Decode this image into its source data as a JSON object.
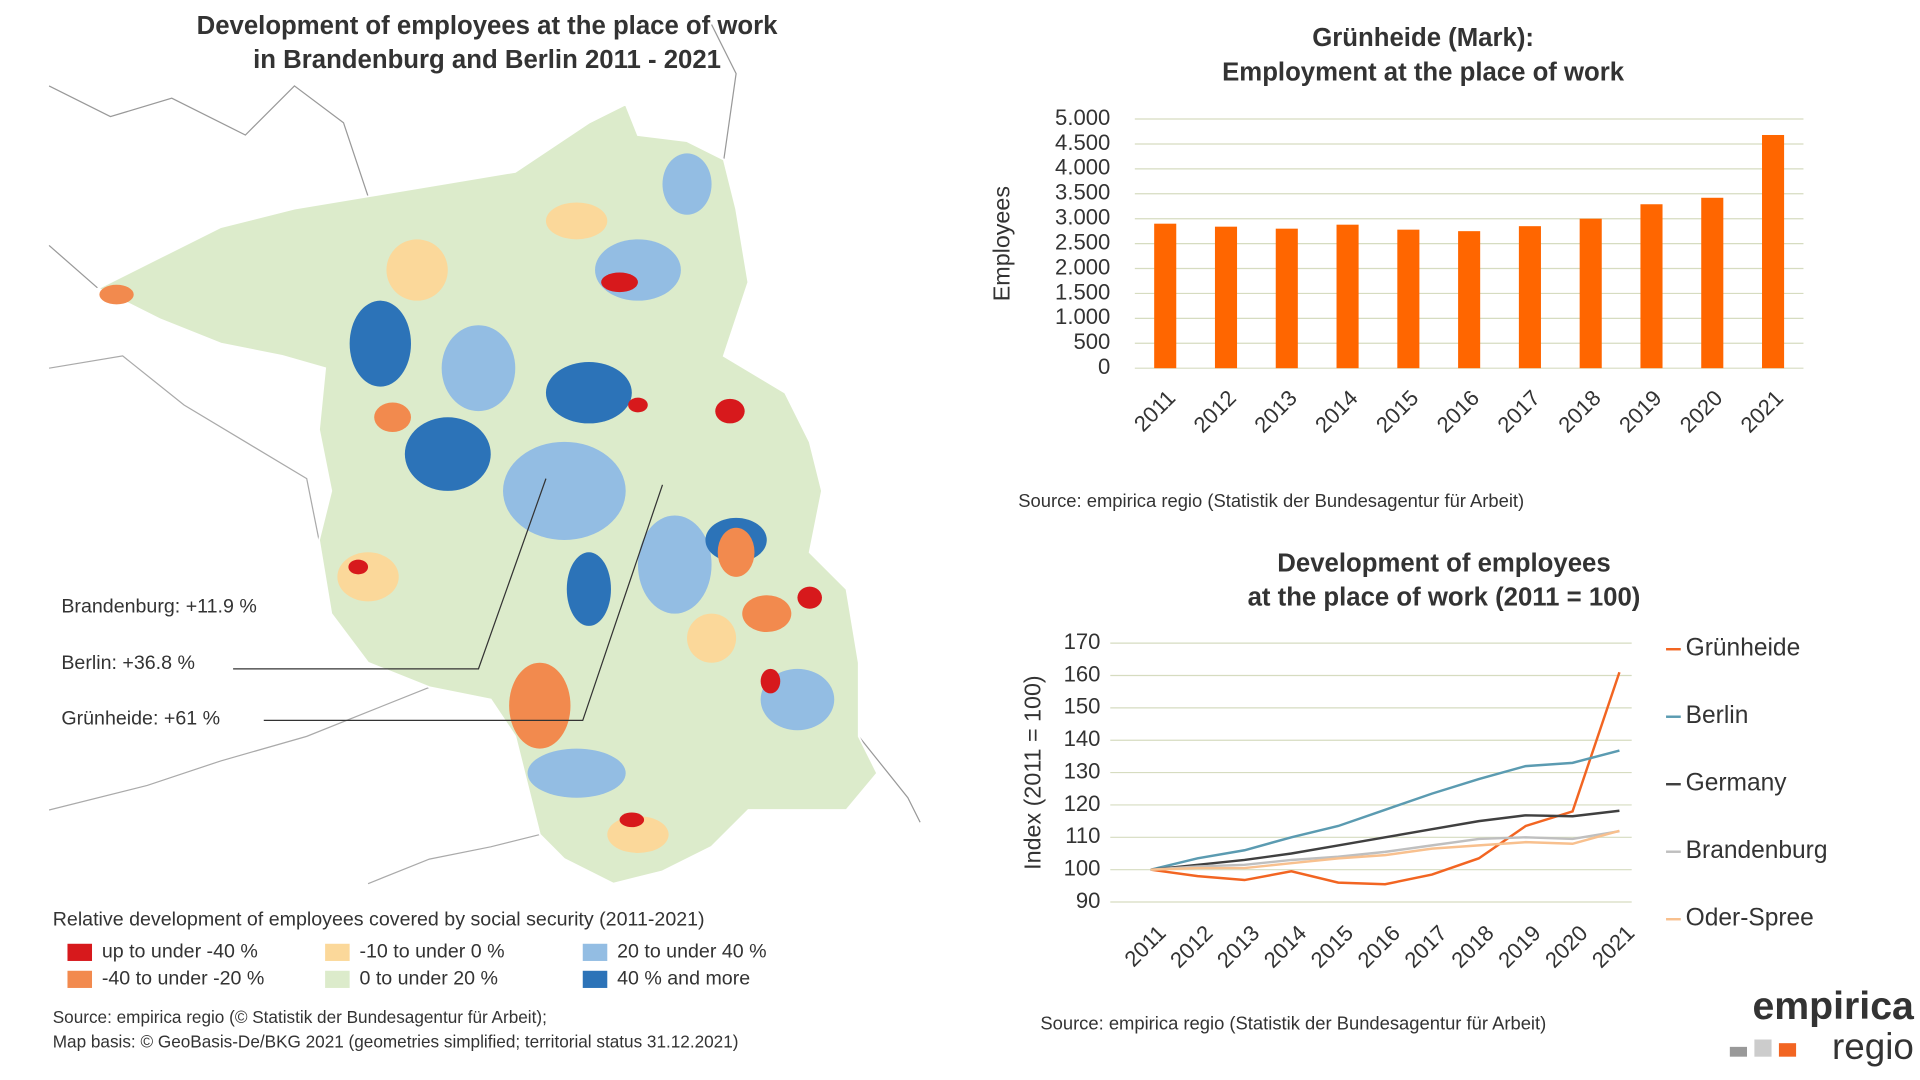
{
  "chart_data": [
    {
      "type": "map",
      "title": [
        "Development of employees at the place of work",
        "in Brandenburg and Berlin 2011 - 2021"
      ],
      "annotations": [
        "Brandenburg: +11.9 %",
        "Berlin: +36.8 %",
        "Grünheide: +61 %"
      ],
      "legend_title": "Relative development of employees covered by social security (2011-2021)",
      "legend": [
        {
          "label": "up to under -40 %",
          "color": "#d7191c"
        },
        {
          "label": "-40 to under -20 %",
          "color": "#f28a4e"
        },
        {
          "label": "-10 to under 0 %",
          "color": "#fbd89a"
        },
        {
          "label": "0 to under 20 %",
          "color": "#dcebcb"
        },
        {
          "label": "20 to under 40 %",
          "color": "#93bde3"
        },
        {
          "label": "40 % and more",
          "color": "#2c73b8"
        }
      ],
      "source": [
        "Source: empirica regio (© Statistik der Bundesagentur für Arbeit);",
        "Map basis: © GeoBasis-De/BKG 2021 (geometries simplified; territorial status 31.12.2021)"
      ]
    },
    {
      "type": "bar",
      "title": [
        "Grünheide (Mark):",
        "Employment at the place of work"
      ],
      "ylabel": "Employees",
      "categories": [
        "2011",
        "2012",
        "2013",
        "2014",
        "2015",
        "2016",
        "2017",
        "2018",
        "2019",
        "2020",
        "2021"
      ],
      "values": [
        2900,
        2840,
        2800,
        2880,
        2780,
        2750,
        2850,
        3000,
        3290,
        3420,
        4680
      ],
      "color": "#ff6600",
      "ylim": [
        0,
        5000
      ],
      "yticks": [
        0,
        500,
        {
          "value": 1000,
          "label": "1.000"
        },
        {
          "value": 1500,
          "label": "1.500"
        },
        {
          "value": 2000,
          "label": "2.000"
        },
        {
          "value": 2500,
          "label": "2.500"
        },
        {
          "value": 3000,
          "label": "3.000"
        },
        {
          "value": 3500,
          "label": "3.500"
        },
        {
          "value": 4000,
          "label": "4.000"
        },
        {
          "value": 4500,
          "label": "4.500"
        },
        {
          "value": 5000,
          "label": "5.000"
        }
      ],
      "grid": true,
      "source": "Source: empirica regio (Statistik der Bundesagentur für Arbeit)"
    },
    {
      "type": "line",
      "title": [
        "Development of employees",
        "at the place of work (2011 = 100)"
      ],
      "ylabel": "Index (2011 = 100)",
      "categories": [
        "2011",
        "2012",
        "2013",
        "2014",
        "2015",
        "2016",
        "2017",
        "2018",
        "2019",
        "2020",
        "2021"
      ],
      "series": [
        {
          "name": "Grünheide",
          "color": "#f26522",
          "values": [
            100,
            98,
            96.8,
            99.5,
            96,
            95.5,
            98.5,
            103.5,
            113.5,
            118,
            161
          ]
        },
        {
          "name": "Berlin",
          "color": "#5b9bb1",
          "values": [
            100,
            103.5,
            106,
            110,
            113.5,
            118.5,
            123.5,
            128,
            132,
            133,
            136.8
          ]
        },
        {
          "name": "Germany",
          "color": "#404040",
          "values": [
            100,
            101.5,
            103,
            105,
            107.5,
            110,
            112.5,
            115,
            116.8,
            116.5,
            118.2
          ]
        },
        {
          "name": "Brandenburg",
          "color": "#bfbfbf",
          "values": [
            100,
            101,
            101.5,
            103,
            104,
            105.5,
            107.5,
            109.5,
            110,
            109.5,
            111.9
          ]
        },
        {
          "name": "Oder-Spree",
          "color": "#f8c08e",
          "values": [
            100,
            100.5,
            100.5,
            102,
            103.5,
            104.5,
            106.5,
            107.5,
            108.5,
            108,
            112
          ]
        }
      ],
      "ylim": [
        90,
        170
      ],
      "yticks": [
        90,
        100,
        110,
        120,
        130,
        140,
        150,
        160,
        170
      ],
      "grid": true,
      "legend": "right",
      "source": "Source: empirica regio (Statistik der Bundesagentur für Arbeit)"
    }
  ],
  "logo": {
    "name": "empirica",
    "sub": "regio"
  }
}
